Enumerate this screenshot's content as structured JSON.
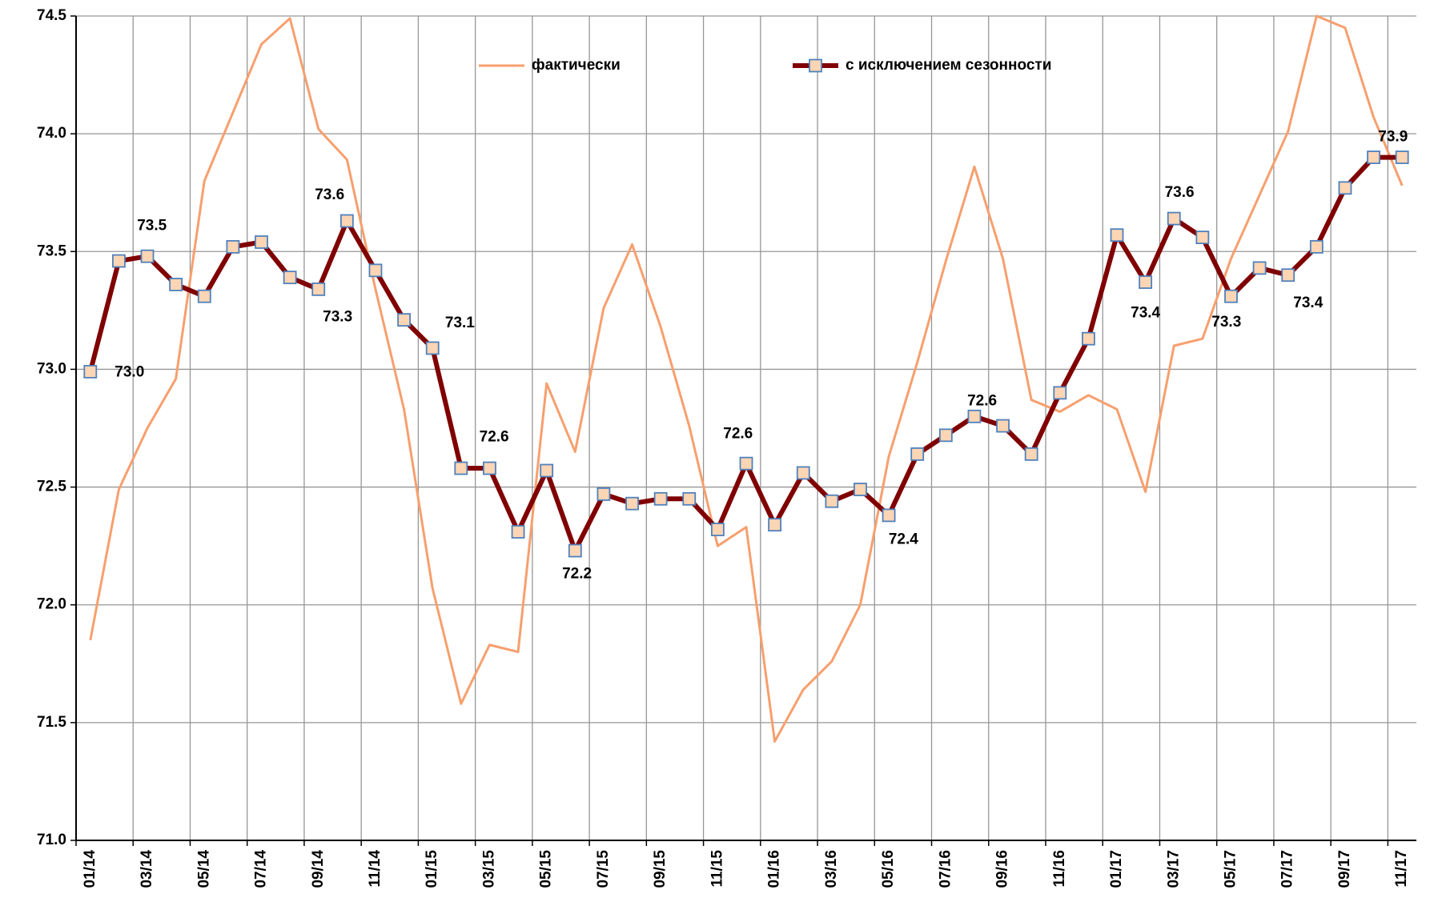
{
  "chart_data": {
    "type": "line",
    "categories": [
      "01/14",
      null,
      "03/14",
      null,
      "05/14",
      null,
      "07/14",
      null,
      "09/14",
      null,
      "11/14",
      null,
      "01/15",
      null,
      "03/15",
      null,
      "05/15",
      null,
      "07/15",
      null,
      "09/15",
      null,
      "11/15",
      null,
      "01/16",
      null,
      "03/16",
      null,
      "05/16",
      null,
      "07/16",
      null,
      "09/16",
      null,
      "11/16",
      null,
      "01/17",
      null,
      "03/17",
      null,
      "05/17",
      null,
      "07/17",
      null,
      "09/17",
      null,
      "11/17"
    ],
    "series": [
      {
        "name": "фактически",
        "color": "#f79f6e",
        "values": [
          71.85,
          72.49,
          72.75,
          72.96,
          73.8,
          74.09,
          74.38,
          74.49,
          74.02,
          73.89,
          73.34,
          72.83,
          72.07,
          71.58,
          71.83,
          71.8,
          72.94,
          72.65,
          73.26,
          73.53,
          73.18,
          72.76,
          72.25,
          72.33,
          71.42,
          71.64,
          71.76,
          72.0,
          72.63,
          73.03,
          73.46,
          73.86,
          73.47,
          72.87,
          72.82,
          72.89,
          72.83,
          72.48,
          73.1,
          73.13,
          73.47,
          73.74,
          74.01,
          74.5,
          74.45,
          74.07,
          73.78
        ]
      },
      {
        "name": "с исключением сезонности",
        "color": "#800000",
        "marker_fill": "#fcd5b4",
        "marker_edge": "#4f81bd",
        "values": [
          72.99,
          73.46,
          73.48,
          73.36,
          73.31,
          73.52,
          73.54,
          73.39,
          73.34,
          73.63,
          73.42,
          73.21,
          73.09,
          72.58,
          72.58,
          72.31,
          72.57,
          72.23,
          72.47,
          72.43,
          72.45,
          72.45,
          72.32,
          72.6,
          72.34,
          72.56,
          72.44,
          72.49,
          72.38,
          72.64,
          72.72,
          72.8,
          72.76,
          72.64,
          72.9,
          73.13,
          73.57,
          73.37,
          73.64,
          73.56,
          73.31,
          73.43,
          73.4,
          73.52,
          73.77,
          73.9,
          73.9
        ],
        "value_labels": [
          "73.0",
          null,
          "73.5",
          null,
          null,
          null,
          null,
          null,
          "73.3",
          "73.6",
          null,
          null,
          "73.1",
          null,
          "72.6",
          null,
          null,
          "72.2",
          null,
          null,
          null,
          null,
          null,
          "72.6",
          null,
          null,
          null,
          null,
          "72.4",
          "72.6",
          null,
          null,
          null,
          null,
          null,
          null,
          null,
          "73.4",
          "73.6",
          null,
          "73.3",
          null,
          "73.4",
          null,
          null,
          null,
          "73.9"
        ]
      }
    ],
    "ylim": [
      71.0,
      74.5
    ],
    "yticks": [
      {
        "value": 71.0,
        "label": "71.0"
      },
      {
        "value": 71.5,
        "label": "71.5"
      },
      {
        "value": 72.0,
        "label": "72.0"
      },
      {
        "value": 72.5,
        "label": "72.5"
      },
      {
        "value": 73.0,
        "label": "73.0"
      },
      {
        "value": 73.5,
        "label": "73.5"
      },
      {
        "value": 74.0,
        "label": "74.0"
      },
      {
        "value": 74.5,
        "label": "74.5"
      }
    ],
    "grid": true,
    "legend": "top"
  }
}
